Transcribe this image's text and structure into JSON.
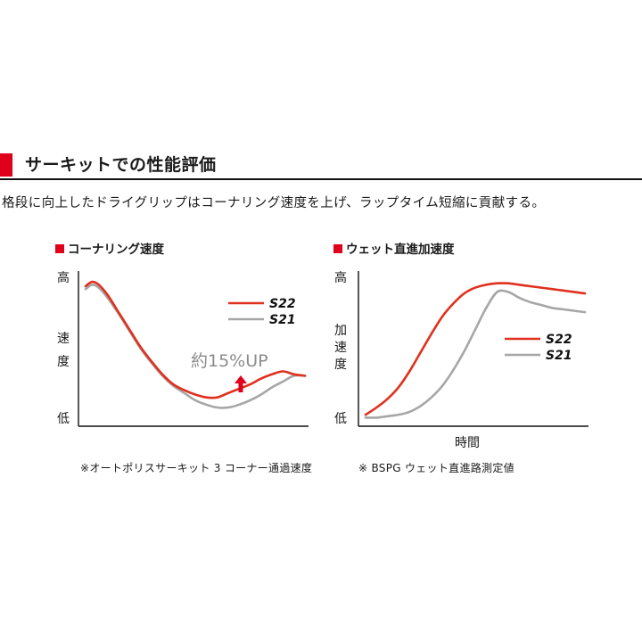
{
  "section": {
    "title": "サーキットでの性能評価",
    "lead": "格段に向上したドライグリップはコーナリング速度を上げ、ラップタイム短縮に貢献する。"
  },
  "colors": {
    "accent": "#e0001b",
    "s22": "#e0301e",
    "s21": "#a6a6a6"
  },
  "chart_data": [
    {
      "type": "line",
      "title": "コーナリング速度",
      "ylabel_high": "高",
      "ylabel_mid": [
        "速",
        "度"
      ],
      "ylabel_low": "低",
      "xlabel": "",
      "note": "※オートポリスサーキット 3 コーナー通過速度",
      "annotation": "約15%UP",
      "ylim": [
        0,
        100
      ],
      "x": [
        0,
        3,
        6,
        10,
        15,
        20,
        25,
        30,
        35,
        40,
        45,
        50,
        55,
        60,
        65,
        70,
        75,
        80,
        85,
        90,
        95,
        100
      ],
      "series": [
        {
          "name": "S22",
          "values": [
            92,
            95,
            93,
            86,
            74,
            62,
            50,
            40,
            31,
            24,
            20,
            17,
            15,
            15,
            18,
            21,
            24,
            28,
            31,
            33,
            31,
            30
          ]
        },
        {
          "name": "S21",
          "values": [
            90,
            93,
            91,
            84,
            73,
            61,
            49,
            39,
            30,
            23,
            18,
            13,
            10,
            8,
            8,
            10,
            13,
            17,
            22,
            26,
            30,
            30
          ]
        }
      ]
    },
    {
      "type": "line",
      "title": "ウェット直進加速度",
      "ylabel_high": "高",
      "ylabel_mid": [
        "加",
        "速",
        "度"
      ],
      "ylabel_low": "低",
      "xlabel": "時間",
      "note": "※ BSPG ウェット直進路測定値",
      "ylim": [
        0,
        100
      ],
      "x": [
        0,
        5,
        10,
        15,
        20,
        25,
        30,
        35,
        40,
        45,
        50,
        55,
        60,
        65,
        70,
        75,
        80,
        85,
        90,
        95,
        100
      ],
      "series": [
        {
          "name": "S22",
          "values": [
            3,
            8,
            14,
            22,
            33,
            46,
            59,
            71,
            80,
            87,
            91,
            93,
            94,
            94,
            93,
            92,
            91,
            90,
            89,
            88,
            87
          ]
        },
        {
          "name": "S21",
          "values": [
            1,
            1,
            2,
            3,
            5,
            9,
            15,
            23,
            34,
            47,
            62,
            77,
            88,
            88,
            84,
            81,
            79,
            77,
            76,
            75,
            74
          ]
        }
      ]
    }
  ]
}
